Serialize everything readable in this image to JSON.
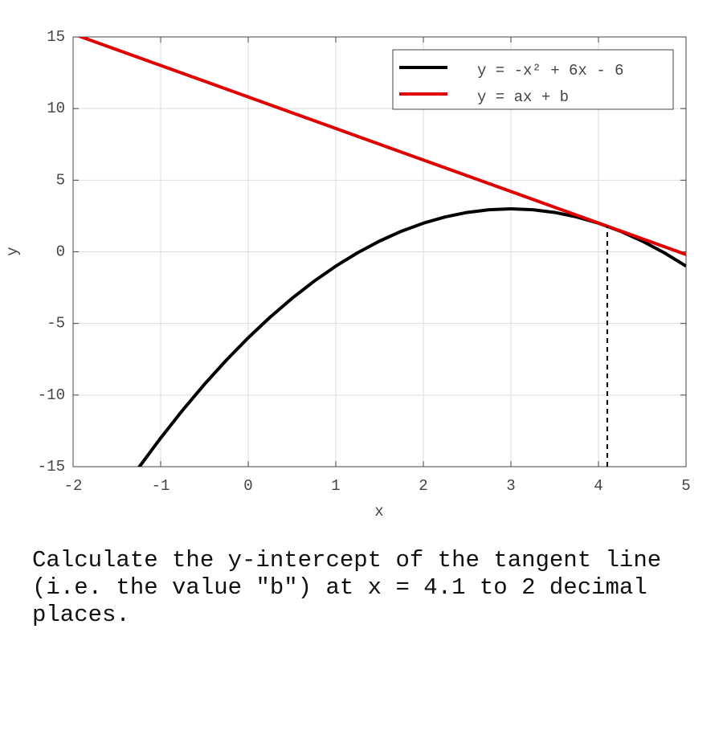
{
  "chart_data": {
    "type": "line",
    "xlabel": "x",
    "ylabel": "y",
    "xlim": [
      -2,
      5
    ],
    "ylim": [
      -15,
      15
    ],
    "xticks": [
      -2,
      -1,
      0,
      1,
      2,
      3,
      4,
      5
    ],
    "yticks": [
      -15,
      -10,
      -5,
      0,
      5,
      10,
      15
    ],
    "grid": true,
    "legend": "upper right",
    "series": [
      {
        "name": "y = -x² + 6x - 6",
        "color": "#000000",
        "x": [
          -1.25,
          -1,
          -0.75,
          -0.5,
          -0.25,
          0,
          0.25,
          0.5,
          0.75,
          1,
          1.25,
          1.5,
          1.75,
          2,
          2.25,
          2.5,
          2.75,
          3,
          3.25,
          3.5,
          3.75,
          4,
          4.25,
          4.5,
          4.75,
          5
        ],
        "values": [
          -15.0625,
          -13,
          -11.0625,
          -9.25,
          -7.5625,
          -6,
          -4.5625,
          -3.25,
          -2.0625,
          -1,
          -0.0625,
          0.75,
          1.4375,
          2,
          2.4375,
          2.75,
          2.9375,
          3,
          2.9375,
          2.75,
          2.4375,
          2,
          1.4375,
          0.75,
          -0.0625,
          -1
        ]
      },
      {
        "name": "y = ax + b",
        "color": "#e00000",
        "x": [
          -2,
          5
        ],
        "values": [
          15.21,
          -0.19
        ]
      }
    ],
    "tangent": {
      "x": 4.1,
      "y": 1.79
    }
  },
  "question": "Calculate the y-intercept of the tangent line (i.e. the value \"b\") at x = 4.1 to 2 decimal places."
}
